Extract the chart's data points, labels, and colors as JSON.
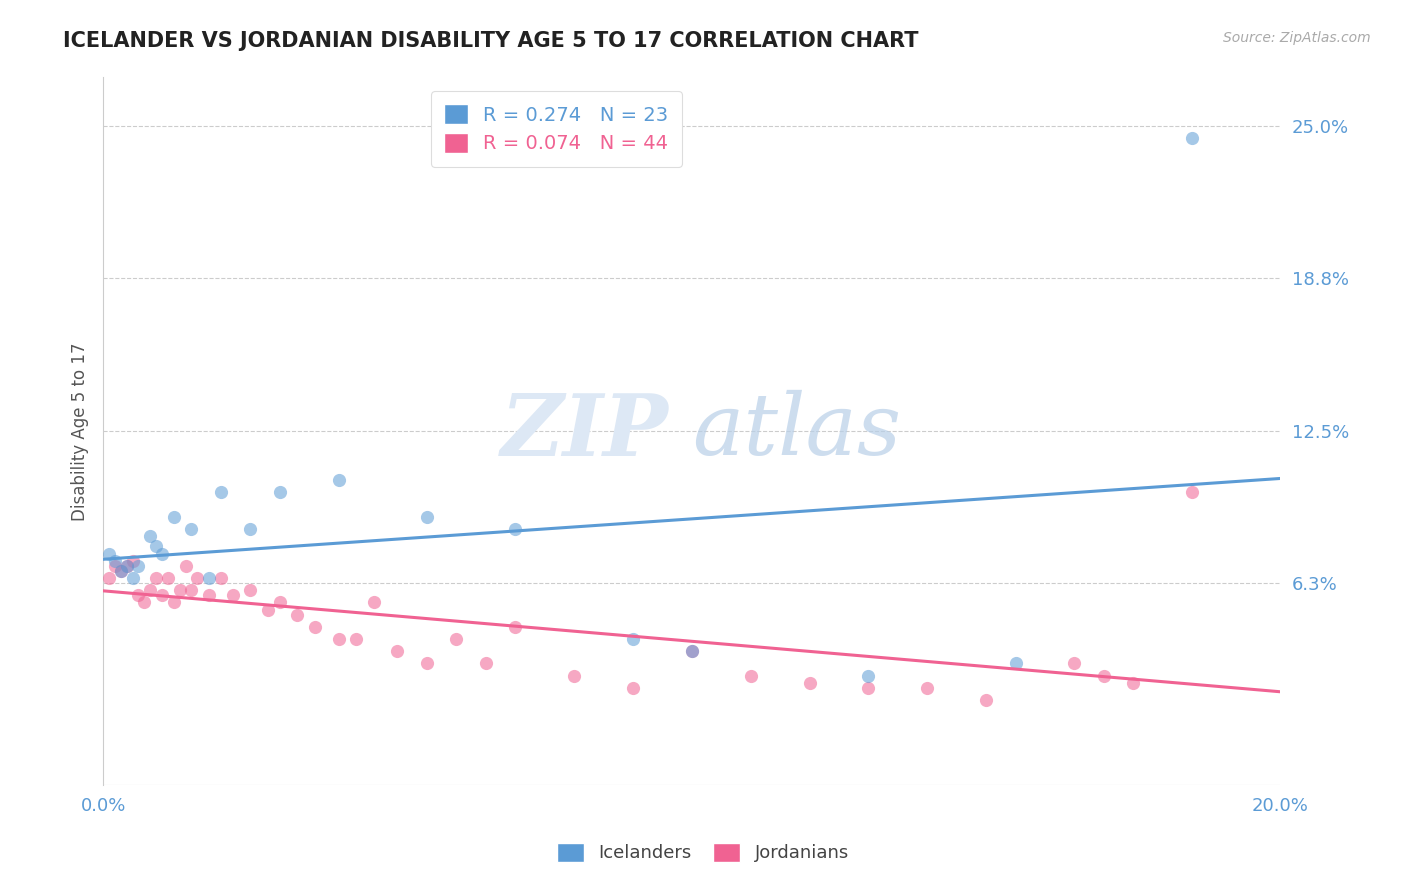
{
  "title": "ICELANDER VS JORDANIAN DISABILITY AGE 5 TO 17 CORRELATION CHART",
  "source_text": "Source: ZipAtlas.com",
  "ylabel": "Disability Age 5 to 17",
  "xlim": [
    0.0,
    0.2
  ],
  "ylim": [
    -0.02,
    0.27
  ],
  "plot_ylim": [
    -0.02,
    0.27
  ],
  "yticks": [
    0.063,
    0.125,
    0.188,
    0.25
  ],
  "ytick_labels": [
    "6.3%",
    "12.5%",
    "18.8%",
    "25.0%"
  ],
  "xticks": [
    0.0,
    0.2
  ],
  "xtick_labels": [
    "0.0%",
    "20.0%"
  ],
  "legend_entry1": {
    "color": "#6baed6",
    "R": "0.274",
    "N": "23",
    "label": "Icelanders"
  },
  "legend_entry2": {
    "color": "#f768a1",
    "R": "0.074",
    "N": "44",
    "label": "Jordanians"
  },
  "icelanders_x": [
    0.001,
    0.002,
    0.003,
    0.004,
    0.005,
    0.006,
    0.008,
    0.009,
    0.01,
    0.012,
    0.015,
    0.018,
    0.02,
    0.025,
    0.03,
    0.04,
    0.055,
    0.07,
    0.09,
    0.1,
    0.13,
    0.155,
    0.185
  ],
  "icelanders_y": [
    0.075,
    0.072,
    0.068,
    0.07,
    0.065,
    0.07,
    0.082,
    0.078,
    0.075,
    0.09,
    0.085,
    0.065,
    0.1,
    0.085,
    0.1,
    0.105,
    0.09,
    0.085,
    0.04,
    0.035,
    0.025,
    0.03,
    0.245
  ],
  "jordanians_x": [
    0.001,
    0.002,
    0.003,
    0.004,
    0.005,
    0.006,
    0.007,
    0.008,
    0.009,
    0.01,
    0.011,
    0.012,
    0.013,
    0.014,
    0.015,
    0.016,
    0.018,
    0.02,
    0.022,
    0.025,
    0.028,
    0.03,
    0.033,
    0.036,
    0.04,
    0.043,
    0.046,
    0.05,
    0.055,
    0.06,
    0.065,
    0.07,
    0.08,
    0.09,
    0.1,
    0.11,
    0.12,
    0.13,
    0.14,
    0.15,
    0.165,
    0.17,
    0.175,
    0.185
  ],
  "jordanians_y": [
    0.065,
    0.07,
    0.068,
    0.07,
    0.072,
    0.058,
    0.055,
    0.06,
    0.065,
    0.058,
    0.065,
    0.055,
    0.06,
    0.07,
    0.06,
    0.065,
    0.058,
    0.065,
    0.058,
    0.06,
    0.052,
    0.055,
    0.05,
    0.045,
    0.04,
    0.04,
    0.055,
    0.035,
    0.03,
    0.04,
    0.03,
    0.045,
    0.025,
    0.02,
    0.035,
    0.025,
    0.022,
    0.02,
    0.02,
    0.015,
    0.03,
    0.025,
    0.022,
    0.1
  ],
  "blue_color": "#5b9bd5",
  "pink_color": "#f06292",
  "bg_color": "#ffffff",
  "grid_color": "#cccccc",
  "title_color": "#222222",
  "axis_label_color": "#555555",
  "tick_color": "#5b9bd5",
  "source_color": "#aaaaaa",
  "watermark_color": "#dde8f5"
}
